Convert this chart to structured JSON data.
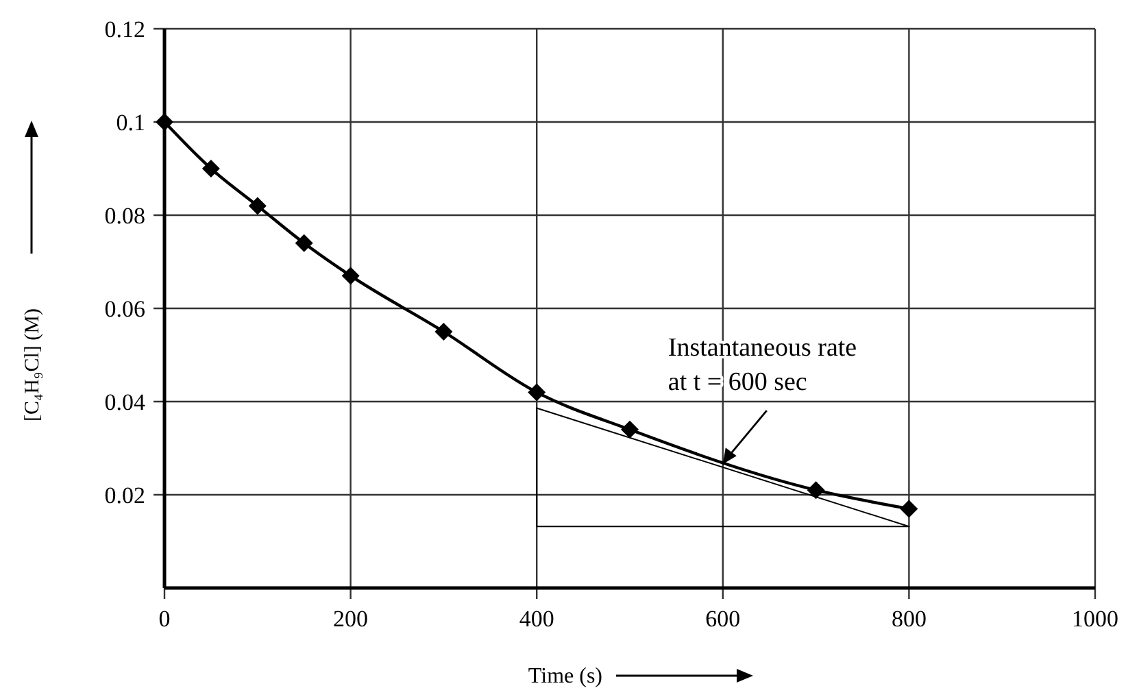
{
  "chart_data": {
    "type": "line",
    "xlabel": "Time (s)",
    "ylabel": "[C₄H₉Cl] (M)",
    "xlim": [
      0,
      1000
    ],
    "ylim": [
      0,
      0.12
    ],
    "xticks": [
      0,
      200,
      400,
      600,
      800,
      1000
    ],
    "yticks": [
      0.02,
      0.04,
      0.06,
      0.08,
      0.1,
      0.12
    ],
    "grid": true,
    "series": [
      {
        "color": "#000000",
        "marker": "diamond",
        "line_style": "solid",
        "x": [
          0,
          50,
          100,
          150,
          200,
          300,
          400,
          500,
          700,
          800
        ],
        "values": [
          0.1,
          0.09,
          0.082,
          0.074,
          0.067,
          0.055,
          0.042,
          0.034,
          0.021,
          0.017
        ]
      },
      {
        "color": "#000000",
        "marker": "none",
        "line_style": "solid",
        "x": [
          400,
          800
        ],
        "values": [
          0.0386,
          0.0132
        ]
      },
      {
        "color": "#000000",
        "marker": "none",
        "line_style": "solid",
        "x": [
          400,
          400,
          800
        ],
        "values": [
          0.0386,
          0.0132,
          0.0132
        ]
      }
    ],
    "annotations": [
      {
        "text": "Instantaneous rate\nat t = 600 sec",
        "x": 600,
        "y": 0.0263
      }
    ]
  }
}
